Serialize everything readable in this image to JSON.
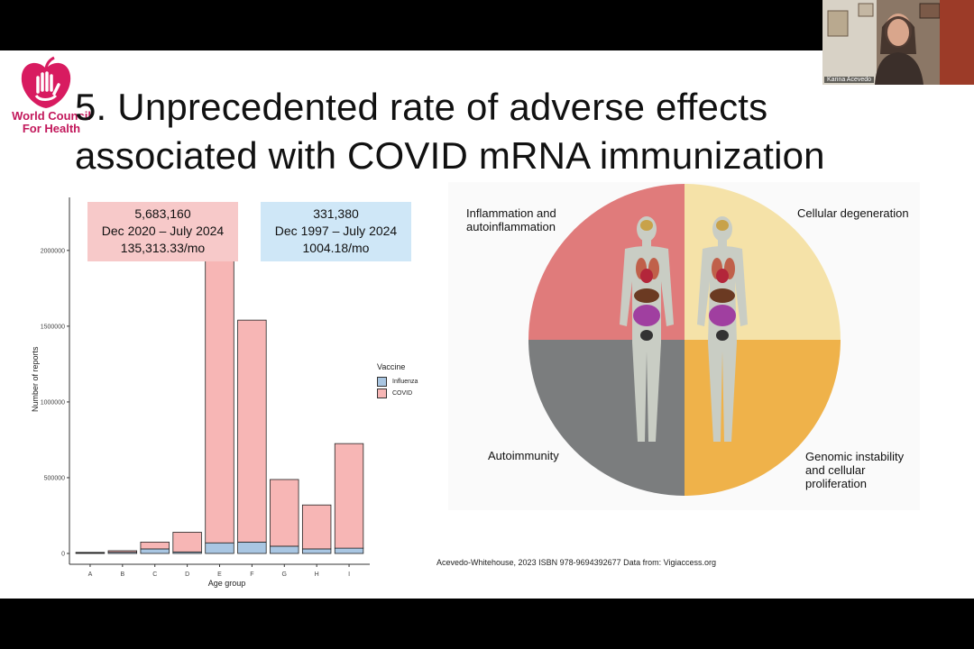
{
  "logo": {
    "line1": "World Council",
    "line2": "For Health"
  },
  "title": {
    "line1": "5. Unprecedented rate of adverse effects",
    "line2": "associated with COVID mRNA immunization"
  },
  "video": {
    "name": "Karina Acevedo"
  },
  "boxes": {
    "covid": {
      "line1": "5,683,160",
      "line2": "Dec 2020 – July 2024",
      "line3": "135,313.33/mo",
      "color": "#f7c9c9"
    },
    "influenza": {
      "line1": "331,380",
      "line2": "Dec 1997 – July 2024",
      "line3": "1004.18/mo",
      "color": "#cfe7f7"
    }
  },
  "chart_data": {
    "type": "bar",
    "stacked": true,
    "categories": [
      "A",
      "B",
      "C",
      "D",
      "E",
      "F",
      "G",
      "H",
      "I"
    ],
    "series": [
      {
        "name": "Influenza",
        "color": "#a9c6e2",
        "values": [
          3000,
          8000,
          30000,
          10000,
          70000,
          75000,
          48000,
          30000,
          35000
        ]
      },
      {
        "name": "COVID",
        "color": "#f7b6b5",
        "values": [
          4000,
          10000,
          45000,
          130000,
          1930000,
          1465000,
          440000,
          290000,
          690000
        ]
      }
    ],
    "xlabel": "Age group",
    "ylabel": "Number of reports",
    "yticks": [
      0,
      500000,
      1000000,
      1500000,
      2000000
    ],
    "ytick_labels": [
      "0",
      "500000",
      "1000000",
      "1500000",
      "2000000"
    ],
    "ylim": [
      0,
      2350000
    ],
    "grid": false,
    "legend": {
      "title": "Vaccine",
      "entries": [
        "Influenza",
        "COVID"
      ],
      "position": "right"
    }
  },
  "diagram": {
    "labels": {
      "tl": [
        "Inflammation and",
        "autoinflammation"
      ],
      "tr": [
        "Cellular degeneration"
      ],
      "bl": [
        "Autoimmunity"
      ],
      "br": [
        "Genomic instability",
        "and cellular",
        "proliferation"
      ]
    },
    "colors": {
      "tl": "#e07b7b",
      "tr": "#f5e2a8",
      "bl": "#7b7d7e",
      "br": "#efb24a"
    }
  },
  "citation": "Acevedo-Whitehouse, 2023 ISBN  978-9694392677 Data from: Vigiaccess.org"
}
